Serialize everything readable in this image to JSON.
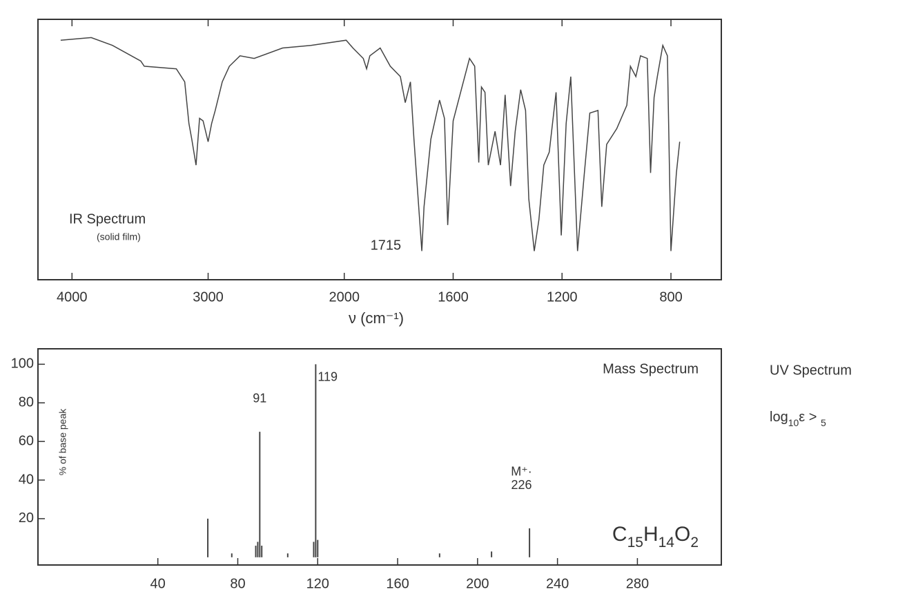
{
  "chart_data": [
    {
      "type": "line",
      "title": "IR Spectrum",
      "subtitle": "(solid film)",
      "xlabel": "ν (cm⁻¹)",
      "color": "#444",
      "x": [
        4083,
        3859,
        3703,
        3495,
        3469,
        3234,
        3172,
        3141,
        3120,
        3089,
        3063,
        3037,
        3000,
        2974,
        2948,
        2896,
        2844,
        2766,
        2662,
        2453,
        2245,
        1993,
        1968,
        1930,
        1918,
        1906,
        1868,
        1831,
        1794,
        1776,
        1757,
        1744,
        1715,
        1707,
        1682,
        1650,
        1632,
        1620,
        1600,
        1570,
        1540,
        1521,
        1506,
        1496,
        1483,
        1471,
        1446,
        1426,
        1409,
        1389,
        1372,
        1352,
        1334,
        1322,
        1302,
        1285,
        1267,
        1247,
        1222,
        1203,
        1185,
        1168,
        1143,
        1118,
        1098,
        1068,
        1054,
        1036,
        999,
        962,
        949,
        929,
        912,
        887,
        875,
        862,
        850,
        830,
        813,
        800,
        780,
        768
      ],
      "values": [
        92,
        93,
        90,
        84,
        82,
        81,
        76,
        60,
        54,
        44,
        62,
        61,
        53,
        60,
        65,
        76,
        82,
        86,
        85,
        89,
        90,
        92,
        89,
        85,
        81,
        86,
        89,
        82,
        78,
        68,
        76,
        54,
        11,
        28,
        54,
        69,
        62,
        21,
        61,
        73,
        85,
        82,
        45,
        74,
        72,
        44,
        57,
        44,
        71,
        36,
        57,
        73,
        65,
        31,
        11,
        23,
        44,
        49,
        72,
        17,
        60,
        78,
        11,
        41,
        64,
        65,
        28,
        52,
        58,
        67,
        82,
        78,
        86,
        85,
        41,
        70,
        78,
        90,
        86,
        11,
        41,
        53
      ],
      "ylim": [
        0,
        100
      ],
      "xlim": [
        4250,
        615
      ],
      "xbreak": 2000,
      "xexpand": 2,
      "xticks": [
        4000,
        3000,
        2000,
        1600,
        1200,
        800
      ],
      "annotations": [
        {
          "text": "1715",
          "x": 1715,
          "y": 13
        }
      ]
    },
    {
      "type": "stem",
      "title": "Mass Spectrum",
      "ylabel": "% of base peak",
      "formula": "C15H14O2",
      "color": "#444",
      "x": [
        65,
        77,
        89,
        90,
        91,
        92,
        105,
        118,
        119,
        120,
        181,
        207,
        226
      ],
      "values": [
        20,
        2,
        6,
        8,
        65,
        6,
        2,
        8,
        100,
        9,
        2,
        3,
        15
      ],
      "xlim": [
        -20,
        322
      ],
      "ylim": [
        -4,
        108
      ],
      "xticks": [
        40,
        80,
        120,
        160,
        200,
        240,
        280
      ],
      "yticks": [
        20,
        40,
        60,
        80,
        100
      ],
      "annotations": [
        {
          "text": "119",
          "x": 125,
          "y": 93
        },
        {
          "text": "91",
          "x": 91,
          "y": 82
        },
        {
          "text": "M⁺·",
          "x": 222,
          "y": 44
        },
        {
          "text": "226",
          "x": 222,
          "y": 37
        }
      ]
    }
  ],
  "uv_spectrum": {
    "title": "UV Spectrum",
    "text": "log10ε > 5"
  }
}
